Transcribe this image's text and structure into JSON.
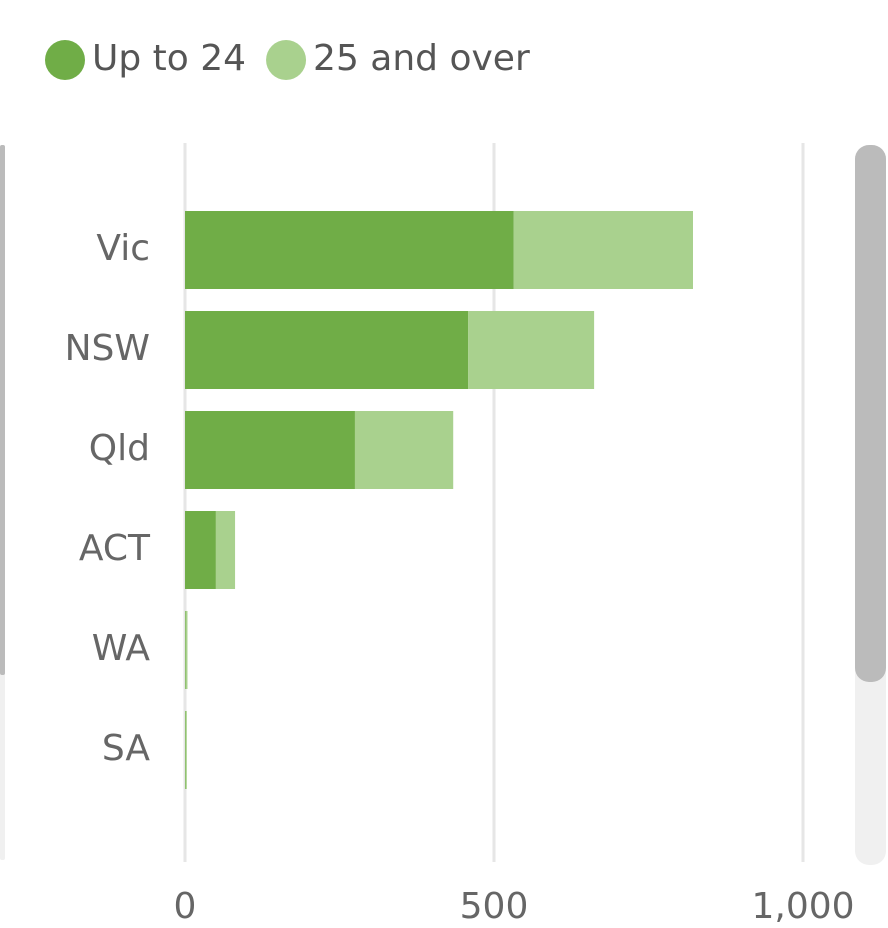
{
  "chart_data": {
    "type": "stacked_bar_horizontal",
    "categories": [
      "Vic",
      "NSW",
      "Qld",
      "ACT",
      "WA",
      "SA"
    ],
    "series": [
      {
        "name": "Up to 24",
        "color": "#70ad47",
        "values": [
          532,
          458,
          275,
          50,
          1,
          1
        ]
      },
      {
        "name": "25 and over",
        "color": "#a9d18e",
        "values": [
          290,
          204,
          159,
          31,
          3,
          2
        ]
      }
    ],
    "xlim": [
      0,
      1000
    ],
    "xticks": [
      0,
      500,
      {
        "value": 1000,
        "label": "1,000"
      }
    ],
    "grid": true,
    "legend": "top-left"
  }
}
